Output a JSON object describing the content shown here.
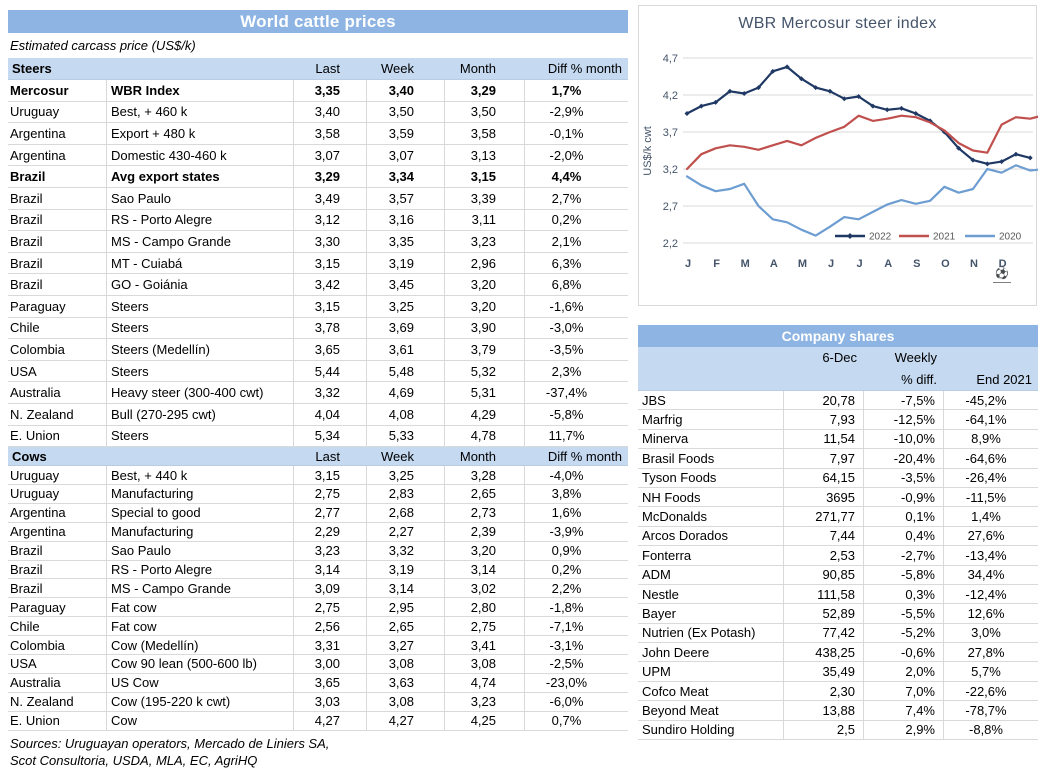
{
  "colors": {
    "header_blue": "#8DB4E2",
    "band_blue": "#C5D9F1",
    "row_line": "#D9D9D9",
    "gridline": "#D9D9D9",
    "chart_text": "#44546A",
    "series_2022": "#1F3864",
    "series_2021": "#C0504D",
    "series_2020": "#6D9DD1"
  },
  "left_table": {
    "title": "World cattle prices",
    "subtitle": "Estimated carcass price (US$/k)",
    "columns": [
      "Last",
      "Week",
      "Month",
      "Diff % month"
    ],
    "sections": [
      {
        "name": "Steers",
        "rows": [
          {
            "country": "Mercosur",
            "desc": "WBR Index",
            "last": "3,35",
            "week": "3,40",
            "month": "3,29",
            "diff": "1,7%",
            "bold": true
          },
          {
            "country": "Uruguay",
            "desc": "Best, + 460 k",
            "last": "3,40",
            "week": "3,50",
            "month": "3,50",
            "diff": "-2,9%",
            "bold": false
          },
          {
            "country": "Argentina",
            "desc": "Export + 480 k",
            "last": "3,58",
            "week": "3,59",
            "month": "3,58",
            "diff": "-0,1%",
            "bold": false
          },
          {
            "country": "Argentina",
            "desc": "Domestic 430-460 k",
            "last": "3,07",
            "week": "3,07",
            "month": "3,13",
            "diff": "-2,0%",
            "bold": false
          },
          {
            "country": "Brazil",
            "desc": "Avg export states",
            "last": "3,29",
            "week": "3,34",
            "month": "3,15",
            "diff": "4,4%",
            "bold": true
          },
          {
            "country": "Brazil",
            "desc": "Sao Paulo",
            "last": "3,49",
            "week": "3,57",
            "month": "3,39",
            "diff": "2,7%",
            "bold": false
          },
          {
            "country": "Brazil",
            "desc": "RS - Porto Alegre",
            "last": "3,12",
            "week": "3,16",
            "month": "3,11",
            "diff": "0,2%",
            "bold": false
          },
          {
            "country": "Brazil",
            "desc": "MS - Campo Grande",
            "last": "3,30",
            "week": "3,35",
            "month": "3,23",
            "diff": "2,1%",
            "bold": false
          },
          {
            "country": "Brazil",
            "desc": "MT - Cuiabá",
            "last": "3,15",
            "week": "3,19",
            "month": "2,96",
            "diff": "6,3%",
            "bold": false
          },
          {
            "country": "Brazil",
            "desc": "GO - Goiánia",
            "last": "3,42",
            "week": "3,45",
            "month": "3,20",
            "diff": "6,8%",
            "bold": false
          },
          {
            "country": "Paraguay",
            "desc": "Steers",
            "last": "3,15",
            "week": "3,25",
            "month": "3,20",
            "diff": "-1,6%",
            "bold": false
          },
          {
            "country": "Chile",
            "desc": "Steers",
            "last": "3,78",
            "week": "3,69",
            "month": "3,90",
            "diff": "-3,0%",
            "bold": false
          },
          {
            "country": "Colombia",
            "desc": "Steers (Medellín)",
            "last": "3,65",
            "week": "3,61",
            "month": "3,79",
            "diff": "-3,5%",
            "bold": false
          },
          {
            "country": "USA",
            "desc": "Steers",
            "last": "5,44",
            "week": "5,48",
            "month": "5,32",
            "diff": "2,3%",
            "bold": false
          },
          {
            "country": "Australia",
            "desc": "Heavy steer (300-400 cwt)",
            "last": "3,32",
            "week": "4,69",
            "month": "5,31",
            "diff": "-37,4%",
            "bold": false
          },
          {
            "country": "N. Zealand",
            "desc": "Bull (270-295 cwt)",
            "last": "4,04",
            "week": "4,08",
            "month": "4,29",
            "diff": "-5,8%",
            "bold": false
          },
          {
            "country": "E. Union",
            "desc": "Steers",
            "last": "5,34",
            "week": "5,33",
            "month": "4,78",
            "diff": "11,7%",
            "bold": false
          }
        ]
      },
      {
        "name": "Cows",
        "rows": [
          {
            "country": "Uruguay",
            "desc": "Best, + 440 k",
            "last": "3,15",
            "week": "3,25",
            "month": "3,28",
            "diff": "-4,0%",
            "bold": false
          },
          {
            "country": "Uruguay",
            "desc": "Manufacturing",
            "last": "2,75",
            "week": "2,83",
            "month": "2,65",
            "diff": "3,8%",
            "bold": false
          },
          {
            "country": "Argentina",
            "desc": "Special to good",
            "last": "2,77",
            "week": "2,68",
            "month": "2,73",
            "diff": "1,6%",
            "bold": false
          },
          {
            "country": "Argentina",
            "desc": "Manufacturing",
            "last": "2,29",
            "week": "2,27",
            "month": "2,39",
            "diff": "-3,9%",
            "bold": false
          },
          {
            "country": "Brazil",
            "desc": "Sao Paulo",
            "last": "3,23",
            "week": "3,32",
            "month": "3,20",
            "diff": "0,9%",
            "bold": false
          },
          {
            "country": "Brazil",
            "desc": "RS - Porto Alegre",
            "last": "3,14",
            "week": "3,19",
            "month": "3,14",
            "diff": "0,2%",
            "bold": false
          },
          {
            "country": "Brazil",
            "desc": "MS - Campo Grande",
            "last": "3,09",
            "week": "3,14",
            "month": "3,02",
            "diff": "2,2%",
            "bold": false
          },
          {
            "country": "Paraguay",
            "desc": "Fat cow",
            "last": "2,75",
            "week": "2,95",
            "month": "2,80",
            "diff": "-1,8%",
            "bold": false
          },
          {
            "country": "Chile",
            "desc": "Fat cow",
            "last": "2,56",
            "week": "2,65",
            "month": "2,75",
            "diff": "-7,1%",
            "bold": false
          },
          {
            "country": "Colombia",
            "desc": "Cow (Medellín)",
            "last": "3,31",
            "week": "3,27",
            "month": "3,41",
            "diff": "-3,1%",
            "bold": false
          },
          {
            "country": "USA",
            "desc": "Cow 90 lean (500-600 lb)",
            "last": "3,00",
            "week": "3,08",
            "month": "3,08",
            "diff": "-2,5%",
            "bold": false
          },
          {
            "country": "Australia",
            "desc": "US Cow",
            "last": "3,65",
            "week": "3,63",
            "month": "4,74",
            "diff": "-23,0%",
            "bold": false
          },
          {
            "country": "N. Zealand",
            "desc": "Cow (195-220 k cwt)",
            "last": "3,03",
            "week": "3,08",
            "month": "3,23",
            "diff": "-6,0%",
            "bold": false
          },
          {
            "country": "E. Union",
            "desc": "Cow",
            "last": "4,27",
            "week": "4,27",
            "month": "4,25",
            "diff": "0,7%",
            "bold": false
          }
        ]
      }
    ],
    "sources": [
      "Sources: Uruguayan operators, Mercado de Liniers SA,",
      "Scot Consultoria, USDA, MLA, EC, AgriHQ"
    ]
  },
  "chart_data": {
    "type": "line",
    "title": "WBR Mercosur steer index",
    "ylabel": "US$/k cwt",
    "ylim": [
      2.2,
      4.7
    ],
    "ytick_values": [
      2.2,
      2.7,
      3.2,
      3.7,
      4.2,
      4.7
    ],
    "ytick_labels": [
      "2,2",
      "2,7",
      "3,2",
      "3,7",
      "4,2",
      "4,7"
    ],
    "x_labels": [
      "J",
      "F",
      "M",
      "A",
      "M",
      "J",
      "J",
      "A",
      "S",
      "O",
      "N",
      "D"
    ],
    "x_unit": "months Jan-Dec, ~2 samples per month",
    "grid": true,
    "legend_position": "bottom-right-inside",
    "footer_icon_glyph": "⚽",
    "series": [
      {
        "name": "2022",
        "color": "#1F3864",
        "markers": true,
        "values": [
          3.95,
          4.05,
          4.1,
          4.25,
          4.22,
          4.3,
          4.52,
          4.58,
          4.42,
          4.3,
          4.25,
          4.15,
          4.18,
          4.05,
          4.0,
          4.02,
          3.95,
          3.85,
          3.7,
          3.48,
          3.32,
          3.27,
          3.3,
          3.4,
          3.35
        ]
      },
      {
        "name": "2021",
        "color": "#C0504D",
        "markers": false,
        "values": [
          3.2,
          3.4,
          3.48,
          3.52,
          3.5,
          3.46,
          3.52,
          3.58,
          3.52,
          3.62,
          3.7,
          3.77,
          3.92,
          3.85,
          3.88,
          3.92,
          3.9,
          3.83,
          3.72,
          3.55,
          3.45,
          3.42,
          3.8,
          3.9,
          3.88,
          3.93
        ]
      },
      {
        "name": "2020",
        "color": "#6D9DD1",
        "markers": false,
        "values": [
          3.1,
          2.98,
          2.9,
          2.93,
          3.0,
          2.7,
          2.52,
          2.48,
          2.38,
          2.3,
          2.42,
          2.55,
          2.52,
          2.62,
          2.72,
          2.78,
          2.73,
          2.77,
          2.96,
          2.88,
          2.93,
          3.2,
          3.15,
          3.25,
          3.18,
          3.2
        ]
      }
    ]
  },
  "company_table": {
    "title": "Company shares",
    "columns": [
      "6-Dec",
      "Weekly",
      "% diff.",
      "End 2021"
    ],
    "rows": [
      {
        "name": "JBS",
        "price": "20,78",
        "weekly": "-7,5%",
        "end2021": "-45,2%"
      },
      {
        "name": "Marfrig",
        "price": "7,93",
        "weekly": "-12,5%",
        "end2021": "-64,1%"
      },
      {
        "name": "Minerva",
        "price": "11,54",
        "weekly": "-10,0%",
        "end2021": "8,9%"
      },
      {
        "name": "Brasil Foods",
        "price": "7,97",
        "weekly": "-20,4%",
        "end2021": "-64,6%"
      },
      {
        "name": "Tyson Foods",
        "price": "64,15",
        "weekly": "-3,5%",
        "end2021": "-26,4%"
      },
      {
        "name": "NH Foods",
        "price": "3695",
        "weekly": "-0,9%",
        "end2021": "-11,5%"
      },
      {
        "name": "McDonalds",
        "price": "271,77",
        "weekly": "0,1%",
        "end2021": "1,4%"
      },
      {
        "name": "Arcos Dorados",
        "price": "7,44",
        "weekly": "0,4%",
        "end2021": "27,6%"
      },
      {
        "name": "Fonterra",
        "price": "2,53",
        "weekly": "-2,7%",
        "end2021": "-13,4%"
      },
      {
        "name": "ADM",
        "price": "90,85",
        "weekly": "-5,8%",
        "end2021": "34,4%"
      },
      {
        "name": "Nestle",
        "price": "111,58",
        "weekly": "0,3%",
        "end2021": "-12,4%"
      },
      {
        "name": "Bayer",
        "price": "52,89",
        "weekly": "-5,5%",
        "end2021": "12,6%"
      },
      {
        "name": "Nutrien (Ex Potash)",
        "price": "77,42",
        "weekly": "-5,2%",
        "end2021": "3,0%"
      },
      {
        "name": "John Deere",
        "price": "438,25",
        "weekly": "-0,6%",
        "end2021": "27,8%"
      },
      {
        "name": "UPM",
        "price": "35,49",
        "weekly": "2,0%",
        "end2021": "5,7%"
      },
      {
        "name": "Cofco Meat",
        "price": "2,30",
        "weekly": "7,0%",
        "end2021": "-22,6%"
      },
      {
        "name": "Beyond Meat",
        "price": "13,88",
        "weekly": "7,4%",
        "end2021": "-78,7%"
      },
      {
        "name": "Sundiro Holding",
        "price": "2,5",
        "weekly": "2,9%",
        "end2021": "-8,8%"
      }
    ]
  }
}
